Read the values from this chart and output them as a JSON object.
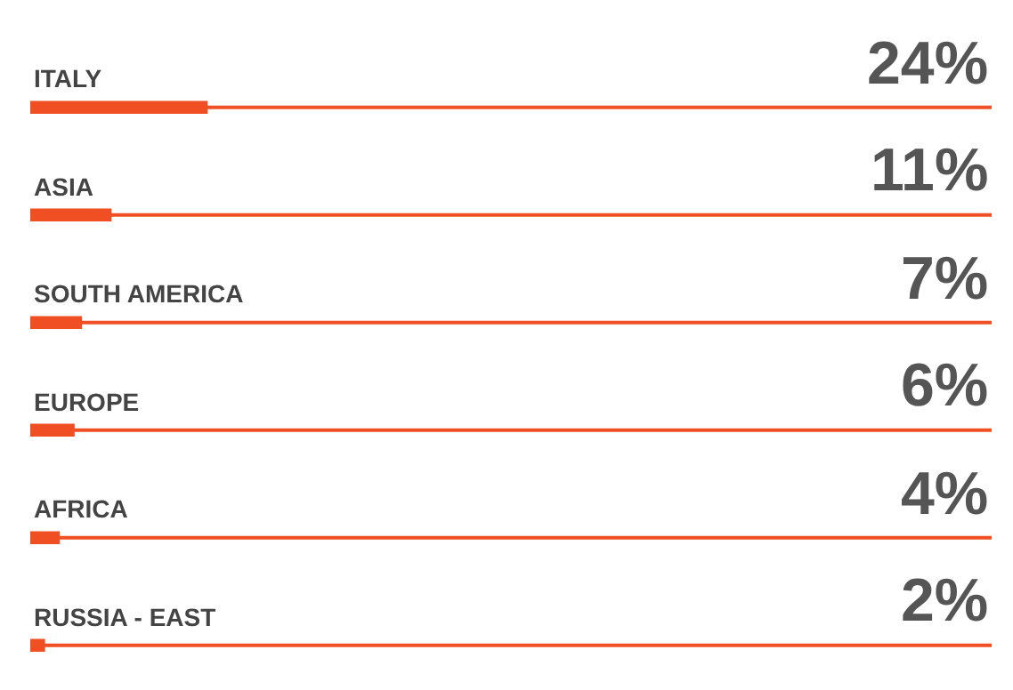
{
  "chart_data": {
    "type": "bar",
    "orientation": "horizontal",
    "categories": [
      "ITALY",
      "ASIA",
      "SOUTH AMERICA",
      "EUROPE",
      "AFRICA",
      "RUSSIA - EAST"
    ],
    "values": [
      24,
      11,
      7,
      6,
      4,
      2
    ],
    "value_labels": [
      "24%",
      "11%",
      "7%",
      "6%",
      "4%",
      "2%"
    ],
    "color": "#f04e23",
    "xlim": [
      0,
      130
    ],
    "tick_labels": false,
    "legend": false
  }
}
